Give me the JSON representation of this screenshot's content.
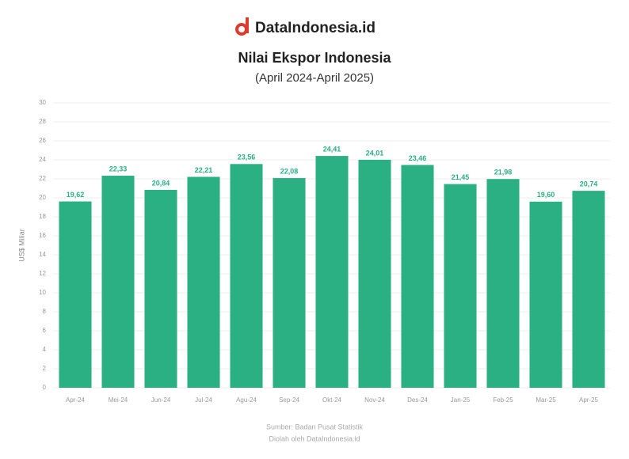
{
  "brand": "DataIndonesia.id",
  "chart_data": {
    "type": "bar",
    "title": "Nilai Ekspor Indonesia",
    "subtitle": "(April 2024-April 2025)",
    "y_label": "US$ Miliar",
    "source": "Sumber: Badan Pusat Statistik",
    "note": "Diolah oleh DataIndonesia.id",
    "categories": [
      "Apr-24",
      "Mei-24",
      "Jun-24",
      "Jul-24",
      "Agu-24",
      "Sep-24",
      "Okt-24",
      "Nov-24",
      "Des-24",
      "Jan-25",
      "Feb-25",
      "Mar-25",
      "Apr-25"
    ],
    "values": [
      19.62,
      22.33,
      20.84,
      22.21,
      23.56,
      22.08,
      24.41,
      24.01,
      23.46,
      21.45,
      21.98,
      19.6,
      20.74
    ],
    "value_labels": [
      "19,62",
      "22,33",
      "20,84",
      "22,21",
      "23,56",
      "22,08",
      "24,41",
      "24,01",
      "23,46",
      "21,45",
      "21,98",
      "19,60",
      "20,74"
    ],
    "color": "#2bb083",
    "ylim": [
      0,
      30
    ],
    "yticks": [
      0,
      2,
      4,
      6,
      8,
      10,
      12,
      14,
      16,
      18,
      20,
      22,
      24,
      26,
      28,
      30
    ],
    "grid": true
  }
}
